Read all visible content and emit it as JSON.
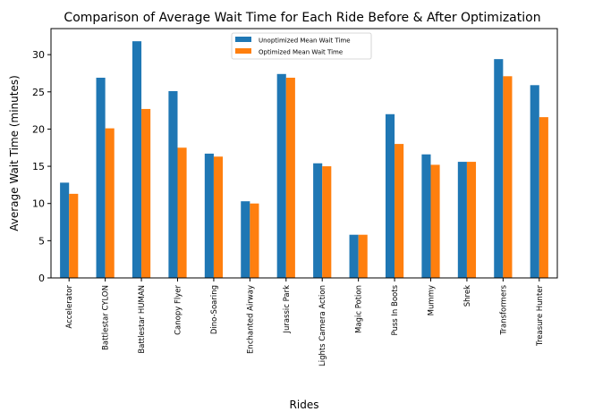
{
  "chart_data": {
    "type": "bar",
    "title": "Comparison of Average Wait Time for Each Ride Before & After Optimization",
    "xlabel": "Rides",
    "ylabel": "Average Wait Time (minutes)",
    "ylim": [
      0,
      33.5
    ],
    "yticks": [
      0,
      5,
      10,
      15,
      20,
      25,
      30
    ],
    "grid": false,
    "legend_position": "upper-center",
    "categories": [
      "Accelerator",
      "Battlestar CYLON",
      "Battlestar HUMAN",
      "Canopy Flyer",
      "Dino-Soaring",
      "Enchanted Airway",
      "Jurassic Park",
      "Lights Camera Action",
      "Magic Potion",
      "Puss In Boots",
      "Mummy",
      "Shrek",
      "Transformers",
      "Treasure Hunter"
    ],
    "series": [
      {
        "name": "Unoptimized Mean Wait Time",
        "color": "#1f77b4",
        "values": [
          12.8,
          26.9,
          31.8,
          25.1,
          16.7,
          10.3,
          27.4,
          15.4,
          5.8,
          22.0,
          16.6,
          15.6,
          29.4,
          25.9
        ]
      },
      {
        "name": "Optimized Mean Wait Time",
        "color": "#ff7f0e",
        "values": [
          11.3,
          20.1,
          22.7,
          17.5,
          16.3,
          10.0,
          26.9,
          15.0,
          5.8,
          18.0,
          15.2,
          15.6,
          27.1,
          21.6
        ]
      }
    ]
  }
}
